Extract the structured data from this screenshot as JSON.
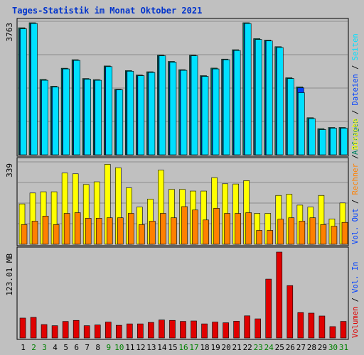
{
  "chart_data": {
    "type": "bar",
    "title": "Tages-Statistik im Monat Oktober 2021",
    "categories": [
      "1",
      "2",
      "3",
      "4",
      "5",
      "6",
      "7",
      "8",
      "9",
      "10",
      "11",
      "12",
      "13",
      "14",
      "15",
      "16",
      "17",
      "18",
      "19",
      "20",
      "21",
      "22",
      "23",
      "24",
      "25",
      "26",
      "27",
      "28",
      "29",
      "30",
      "31"
    ],
    "weekend_categories": [
      "2",
      "3",
      "9",
      "10",
      "16",
      "17",
      "23",
      "24",
      "30",
      "31"
    ],
    "colors": {
      "title": "#0033cc",
      "weekday_tick": "#000000",
      "weekend_tick": "#008000",
      "panel_bg": "#c0c0c0",
      "grid": "#8c8c8c",
      "anfragen": "#008060",
      "dateien": "#0040ff",
      "seiten": "#00e0ff",
      "besuche": "#ffff00",
      "rechner": "#ff8000",
      "vol_out": "#0040ff",
      "vol_in": "#0040ff",
      "volumen": "#e00000",
      "separator": "#000000"
    },
    "panels": [
      {
        "id": "requests",
        "ytick_label": "3763",
        "ylim": [
          0,
          3763
        ],
        "grid": true,
        "right_labels": [
          {
            "text": "Seiten",
            "color": "#00e0ff"
          },
          {
            "text": "Dateien",
            "color": "#0040ff"
          },
          {
            "text": "Anfragen",
            "color": "#008060"
          }
        ],
        "series": [
          {
            "name": "Anfragen",
            "values": [
              3582,
              3723,
              2125,
              1932,
              2440,
              2681,
              2150,
              2118,
              2504,
              1849,
              2373,
              2249,
              2341,
              2809,
              2632,
              2400,
              2809,
              2231,
              2444,
              2698,
              2962,
              3723,
              3275,
              3232,
              3047,
              2171,
              1914,
              1045,
              736,
              770,
              770
            ]
          },
          {
            "name": "Dateien",
            "values": [
              3550,
              3700,
              2100,
              1910,
              2420,
              2660,
              2130,
              2100,
              2485,
              1830,
              2355,
              2230,
              2320,
              2790,
              2610,
              2380,
              2790,
              2210,
              2420,
              2680,
              2940,
              3700,
              3250,
              3210,
              3025,
              2150,
              1890,
              1020,
              710,
              750,
              750
            ]
          },
          {
            "name": "Seiten",
            "values": [
              3550,
              3700,
              2100,
              1910,
              2420,
              2660,
              2130,
              2100,
              2485,
              1830,
              2355,
              2230,
              2320,
              2790,
              2610,
              2380,
              2790,
              2210,
              2420,
              2680,
              2940,
              3700,
              3250,
              3210,
              3025,
              2150,
              1750,
              1020,
              710,
              750,
              750
            ]
          }
        ]
      },
      {
        "id": "visits",
        "ytick_label": "339",
        "ylim": [
          0,
          339
        ],
        "grid": true,
        "right_labels": [
          {
            "text": "Besuche",
            "color": "#ffff00"
          },
          {
            "text": "Rechner",
            "color": "#ff8000"
          },
          {
            "text": "Vol. Out",
            "color": "#0040ff"
          }
        ],
        "series": [
          {
            "name": "Besuche",
            "values": [
              166,
              211,
              216,
              216,
              293,
              290,
              246,
              257,
              329,
              315,
              232,
              153,
              186,
              305,
              226,
              226,
              219,
              219,
              274,
              249,
              248,
              262,
              127,
              127,
              201,
              206,
              161,
              153,
              201,
              104,
              170
            ]
          },
          {
            "name": "Rechner",
            "values": [
              81,
              95,
              116,
              81,
              127,
              130,
              107,
              107,
              109,
              109,
              127,
              81,
              95,
              127,
              109,
              155,
              141,
              100,
              148,
              127,
              127,
              130,
              57,
              57,
              103,
              109,
              95,
              109,
              81,
              74,
              90
            ]
          }
        ]
      },
      {
        "id": "volume",
        "ytick_label": "123.01 MB",
        "ylim": [
          0,
          123.01
        ],
        "grid": false,
        "right_labels": [
          {
            "text": "Vol. In",
            "color": "#0040ff"
          },
          {
            "text": "Volumen",
            "color": "#e00000"
          }
        ],
        "series": [
          {
            "name": "Volumen",
            "values": [
              28.5,
              29.5,
              19.2,
              17.6,
              23.7,
              25.2,
              17.6,
              18.6,
              22.8,
              18.2,
              20.2,
              20.2,
              22.3,
              25.8,
              25.2,
              23.8,
              24.4,
              20.2,
              22.8,
              21.8,
              24.1,
              31.7,
              27.4,
              84.3,
              123.0,
              75.0,
              36.4,
              35.6,
              31.5,
              16.3,
              23.8
            ]
          }
        ]
      }
    ]
  }
}
